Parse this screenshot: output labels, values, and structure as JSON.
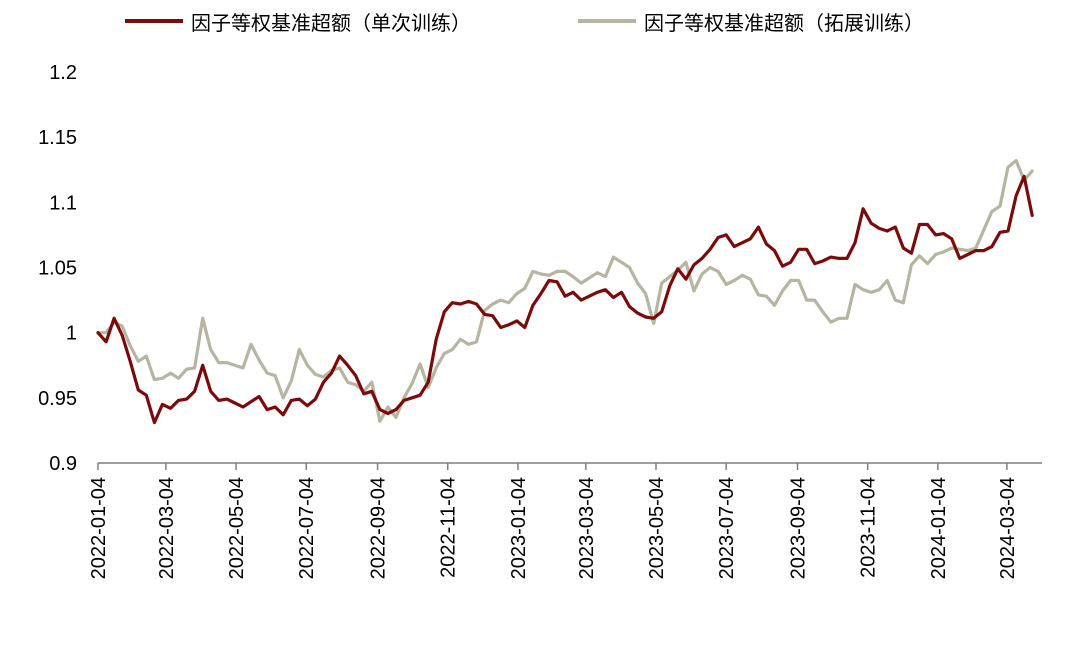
{
  "colors": {
    "series1": "#7B0A0A",
    "series2": "#B5B5A0",
    "axis": "#7F7F7F",
    "text": "#000000"
  },
  "chart_data": {
    "type": "line",
    "title": "",
    "xlabel": "",
    "ylabel": "",
    "ylim": [
      0.9,
      1.2
    ],
    "yticks": [
      "0.9",
      "0.95",
      "1",
      "1.05",
      "1.1",
      "1.15",
      "1.2"
    ],
    "xticks": [
      "2022-01-04",
      "2022-03-04",
      "2022-05-04",
      "2022-07-04",
      "2022-09-04",
      "2022-11-04",
      "2023-01-04",
      "2023-03-04",
      "2023-05-04",
      "2023-07-04",
      "2023-09-04",
      "2023-11-04",
      "2024-01-04",
      "2024-03-04"
    ],
    "grid": false,
    "legend": "top",
    "series": [
      {
        "name": "因子等权基准超额（单次训练）",
        "color": "#7B0A0A",
        "points": [
          [
            "2022-01-04",
            1.0
          ],
          [
            "2022-01-11",
            0.993
          ],
          [
            "2022-01-18",
            1.011
          ],
          [
            "2022-01-25",
            0.998
          ],
          [
            "2022-02-01",
            0.978
          ],
          [
            "2022-02-08",
            0.956
          ],
          [
            "2022-02-15",
            0.952
          ],
          [
            "2022-02-22",
            0.931
          ],
          [
            "2022-03-01",
            0.945
          ],
          [
            "2022-03-08",
            0.942
          ],
          [
            "2022-03-15",
            0.948
          ],
          [
            "2022-03-22",
            0.949
          ],
          [
            "2022-03-29",
            0.955
          ],
          [
            "2022-04-05",
            0.975
          ],
          [
            "2022-04-12",
            0.955
          ],
          [
            "2022-04-19",
            0.948
          ],
          [
            "2022-04-26",
            0.949
          ],
          [
            "2022-05-03",
            0.946
          ],
          [
            "2022-05-10",
            0.943
          ],
          [
            "2022-05-17",
            0.947
          ],
          [
            "2022-05-24",
            0.951
          ],
          [
            "2022-05-31",
            0.941
          ],
          [
            "2022-06-07",
            0.943
          ],
          [
            "2022-06-14",
            0.937
          ],
          [
            "2022-06-21",
            0.948
          ],
          [
            "2022-06-28",
            0.949
          ],
          [
            "2022-07-05",
            0.944
          ],
          [
            "2022-07-12",
            0.949
          ],
          [
            "2022-07-19",
            0.962
          ],
          [
            "2022-07-26",
            0.969
          ],
          [
            "2022-08-02",
            0.982
          ],
          [
            "2022-08-09",
            0.975
          ],
          [
            "2022-08-16",
            0.967
          ],
          [
            "2022-08-23",
            0.953
          ],
          [
            "2022-08-30",
            0.955
          ],
          [
            "2022-09-06",
            0.941
          ],
          [
            "2022-09-13",
            0.938
          ],
          [
            "2022-09-20",
            0.941
          ],
          [
            "2022-09-27",
            0.948
          ],
          [
            "2022-10-04",
            0.95
          ],
          [
            "2022-10-11",
            0.952
          ],
          [
            "2022-10-18",
            0.962
          ],
          [
            "2022-10-25",
            0.995
          ],
          [
            "2022-11-01",
            1.016
          ],
          [
            "2022-11-08",
            1.023
          ],
          [
            "2022-11-15",
            1.022
          ],
          [
            "2022-11-22",
            1.024
          ],
          [
            "2022-11-29",
            1.022
          ],
          [
            "2022-12-06",
            1.014
          ],
          [
            "2022-12-13",
            1.013
          ],
          [
            "2022-12-20",
            1.004
          ],
          [
            "2022-12-27",
            1.006
          ],
          [
            "2023-01-03",
            1.009
          ],
          [
            "2023-01-10",
            1.004
          ],
          [
            "2023-01-17",
            1.021
          ],
          [
            "2023-01-24",
            1.03
          ],
          [
            "2023-01-31",
            1.04
          ],
          [
            "2023-02-07",
            1.039
          ],
          [
            "2023-02-14",
            1.028
          ],
          [
            "2023-02-21",
            1.031
          ],
          [
            "2023-02-28",
            1.025
          ],
          [
            "2023-03-07",
            1.028
          ],
          [
            "2023-03-14",
            1.031
          ],
          [
            "2023-03-21",
            1.033
          ],
          [
            "2023-03-28",
            1.027
          ],
          [
            "2023-04-04",
            1.031
          ],
          [
            "2023-04-11",
            1.02
          ],
          [
            "2023-04-18",
            1.015
          ],
          [
            "2023-04-25",
            1.012
          ],
          [
            "2023-05-02",
            1.011
          ],
          [
            "2023-05-09",
            1.016
          ],
          [
            "2023-05-16",
            1.036
          ],
          [
            "2023-05-23",
            1.049
          ],
          [
            "2023-05-30",
            1.041
          ],
          [
            "2023-06-06",
            1.052
          ],
          [
            "2023-06-13",
            1.057
          ],
          [
            "2023-06-20",
            1.064
          ],
          [
            "2023-06-27",
            1.073
          ],
          [
            "2023-07-04",
            1.075
          ],
          [
            "2023-07-11",
            1.066
          ],
          [
            "2023-07-18",
            1.069
          ],
          [
            "2023-07-25",
            1.072
          ],
          [
            "2023-08-01",
            1.081
          ],
          [
            "2023-08-08",
            1.068
          ],
          [
            "2023-08-15",
            1.063
          ],
          [
            "2023-08-22",
            1.051
          ],
          [
            "2023-08-29",
            1.054
          ],
          [
            "2023-09-05",
            1.064
          ],
          [
            "2023-09-12",
            1.064
          ],
          [
            "2023-09-19",
            1.053
          ],
          [
            "2023-09-26",
            1.055
          ],
          [
            "2023-10-03",
            1.058
          ],
          [
            "2023-10-10",
            1.057
          ],
          [
            "2023-10-17",
            1.057
          ],
          [
            "2023-10-24",
            1.069
          ],
          [
            "2023-10-31",
            1.095
          ],
          [
            "2023-11-07",
            1.084
          ],
          [
            "2023-11-14",
            1.08
          ],
          [
            "2023-11-21",
            1.078
          ],
          [
            "2023-11-28",
            1.081
          ],
          [
            "2023-12-05",
            1.065
          ],
          [
            "2023-12-12",
            1.061
          ],
          [
            "2023-12-19",
            1.083
          ],
          [
            "2023-12-26",
            1.083
          ],
          [
            "2024-01-02",
            1.075
          ],
          [
            "2024-01-09",
            1.076
          ],
          [
            "2024-01-16",
            1.072
          ],
          [
            "2024-01-23",
            1.057
          ],
          [
            "2024-01-30",
            1.06
          ],
          [
            "2024-02-06",
            1.063
          ],
          [
            "2024-02-13",
            1.063
          ],
          [
            "2024-02-20",
            1.066
          ],
          [
            "2024-02-27",
            1.077
          ],
          [
            "2024-03-05",
            1.078
          ],
          [
            "2024-03-12",
            1.105
          ],
          [
            "2024-03-19",
            1.12
          ],
          [
            "2024-03-26",
            1.09
          ]
        ]
      },
      {
        "name": "因子等权基准超额（拓展训练）",
        "color": "#B5B5A0",
        "points": [
          [
            "2022-01-04",
            1.0
          ],
          [
            "2022-01-11",
            1.0
          ],
          [
            "2022-01-18",
            1.008
          ],
          [
            "2022-01-25",
            1.005
          ],
          [
            "2022-02-01",
            0.99
          ],
          [
            "2022-02-08",
            0.978
          ],
          [
            "2022-02-15",
            0.982
          ],
          [
            "2022-02-22",
            0.964
          ],
          [
            "2022-03-01",
            0.965
          ],
          [
            "2022-03-08",
            0.969
          ],
          [
            "2022-03-15",
            0.965
          ],
          [
            "2022-03-22",
            0.972
          ],
          [
            "2022-03-29",
            0.973
          ],
          [
            "2022-04-05",
            1.011
          ],
          [
            "2022-04-12",
            0.987
          ],
          [
            "2022-04-19",
            0.977
          ],
          [
            "2022-04-26",
            0.977
          ],
          [
            "2022-05-03",
            0.975
          ],
          [
            "2022-05-10",
            0.973
          ],
          [
            "2022-05-17",
            0.991
          ],
          [
            "2022-05-24",
            0.979
          ],
          [
            "2022-05-31",
            0.969
          ],
          [
            "2022-06-07",
            0.967
          ],
          [
            "2022-06-14",
            0.95
          ],
          [
            "2022-06-21",
            0.963
          ],
          [
            "2022-06-28",
            0.987
          ],
          [
            "2022-07-05",
            0.975
          ],
          [
            "2022-07-12",
            0.968
          ],
          [
            "2022-07-19",
            0.966
          ],
          [
            "2022-07-26",
            0.971
          ],
          [
            "2022-08-02",
            0.973
          ],
          [
            "2022-08-09",
            0.962
          ],
          [
            "2022-08-16",
            0.96
          ],
          [
            "2022-08-23",
            0.955
          ],
          [
            "2022-08-30",
            0.962
          ],
          [
            "2022-09-06",
            0.932
          ],
          [
            "2022-09-13",
            0.943
          ],
          [
            "2022-09-20",
            0.935
          ],
          [
            "2022-09-27",
            0.95
          ],
          [
            "2022-10-04",
            0.961
          ],
          [
            "2022-10-11",
            0.976
          ],
          [
            "2022-10-18",
            0.958
          ],
          [
            "2022-10-25",
            0.973
          ],
          [
            "2022-11-01",
            0.984
          ],
          [
            "2022-11-08",
            0.987
          ],
          [
            "2022-11-15",
            0.995
          ],
          [
            "2022-11-22",
            0.991
          ],
          [
            "2022-11-29",
            0.993
          ],
          [
            "2022-12-06",
            1.017
          ],
          [
            "2022-12-13",
            1.022
          ],
          [
            "2022-12-20",
            1.025
          ],
          [
            "2022-12-27",
            1.023
          ],
          [
            "2023-01-03",
            1.03
          ],
          [
            "2023-01-10",
            1.034
          ],
          [
            "2023-01-17",
            1.047
          ],
          [
            "2023-01-24",
            1.045
          ],
          [
            "2023-01-31",
            1.044
          ],
          [
            "2023-02-07",
            1.047
          ],
          [
            "2023-02-14",
            1.047
          ],
          [
            "2023-02-21",
            1.043
          ],
          [
            "2023-02-28",
            1.038
          ],
          [
            "2023-03-07",
            1.042
          ],
          [
            "2023-03-14",
            1.046
          ],
          [
            "2023-03-21",
            1.043
          ],
          [
            "2023-03-28",
            1.058
          ],
          [
            "2023-04-04",
            1.054
          ],
          [
            "2023-04-11",
            1.05
          ],
          [
            "2023-04-18",
            1.038
          ],
          [
            "2023-04-25",
            1.03
          ],
          [
            "2023-05-02",
            1.007
          ],
          [
            "2023-05-09",
            1.038
          ],
          [
            "2023-05-16",
            1.043
          ],
          [
            "2023-05-23",
            1.048
          ],
          [
            "2023-05-30",
            1.054
          ],
          [
            "2023-06-06",
            1.032
          ],
          [
            "2023-06-13",
            1.045
          ],
          [
            "2023-06-20",
            1.05
          ],
          [
            "2023-06-27",
            1.047
          ],
          [
            "2023-07-04",
            1.037
          ],
          [
            "2023-07-11",
            1.04
          ],
          [
            "2023-07-18",
            1.044
          ],
          [
            "2023-07-25",
            1.041
          ],
          [
            "2023-08-01",
            1.029
          ],
          [
            "2023-08-08",
            1.028
          ],
          [
            "2023-08-15",
            1.021
          ],
          [
            "2023-08-22",
            1.032
          ],
          [
            "2023-08-29",
            1.04
          ],
          [
            "2023-09-05",
            1.04
          ],
          [
            "2023-09-12",
            1.025
          ],
          [
            "2023-09-19",
            1.025
          ],
          [
            "2023-09-26",
            1.016
          ],
          [
            "2023-10-03",
            1.008
          ],
          [
            "2023-10-10",
            1.011
          ],
          [
            "2023-10-17",
            1.011
          ],
          [
            "2023-10-24",
            1.037
          ],
          [
            "2023-10-31",
            1.033
          ],
          [
            "2023-11-07",
            1.031
          ],
          [
            "2023-11-14",
            1.033
          ],
          [
            "2023-11-21",
            1.04
          ],
          [
            "2023-11-28",
            1.025
          ],
          [
            "2023-12-05",
            1.023
          ],
          [
            "2023-12-12",
            1.052
          ],
          [
            "2023-12-19",
            1.059
          ],
          [
            "2023-12-26",
            1.053
          ],
          [
            "2024-01-02",
            1.06
          ],
          [
            "2024-01-09",
            1.062
          ],
          [
            "2024-01-16",
            1.065
          ],
          [
            "2024-01-23",
            1.064
          ],
          [
            "2024-01-30",
            1.063
          ],
          [
            "2024-02-06",
            1.065
          ],
          [
            "2024-02-13",
            1.079
          ],
          [
            "2024-02-20",
            1.093
          ],
          [
            "2024-02-27",
            1.097
          ],
          [
            "2024-03-05",
            1.127
          ],
          [
            "2024-03-12",
            1.132
          ],
          [
            "2024-03-19",
            1.117
          ],
          [
            "2024-03-26",
            1.124
          ]
        ]
      }
    ]
  }
}
